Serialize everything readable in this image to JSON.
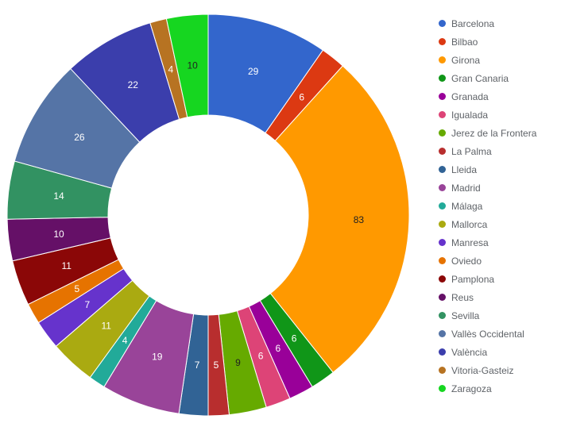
{
  "chart_data": {
    "type": "pie",
    "donut": true,
    "legend_position": "right",
    "slices": [
      {
        "label": "Barcelona",
        "value": 29,
        "color": "#3366cc"
      },
      {
        "label": "Bilbao",
        "value": 6,
        "color": "#dc3912"
      },
      {
        "label": "Girona",
        "value": 83,
        "color": "#ff9900"
      },
      {
        "label": "Gran Canaria",
        "value": 6,
        "color": "#109618"
      },
      {
        "label": "Granada",
        "value": 6,
        "color": "#990099"
      },
      {
        "label": "Igualada",
        "value": 6,
        "color": "#dd4477"
      },
      {
        "label": "Jerez de la Frontera",
        "value": 9,
        "color": "#66aa00"
      },
      {
        "label": "La Palma",
        "value": 5,
        "color": "#b82e2e"
      },
      {
        "label": "Lleida",
        "value": 7,
        "color": "#316395"
      },
      {
        "label": "Madrid",
        "value": 19,
        "color": "#994499"
      },
      {
        "label": "Málaga",
        "value": 4,
        "color": "#22aa99"
      },
      {
        "label": "Mallorca",
        "value": 11,
        "color": "#aaaa11"
      },
      {
        "label": "Manresa",
        "value": 7,
        "color": "#6633cc"
      },
      {
        "label": "Oviedo",
        "value": 5,
        "color": "#e67300"
      },
      {
        "label": "Pamplona",
        "value": 11,
        "color": "#8b0707"
      },
      {
        "label": "Reus",
        "value": 10,
        "color": "#651067"
      },
      {
        "label": "Sevilla",
        "value": 14,
        "color": "#329262"
      },
      {
        "label": "Vallès Occidental",
        "value": 26,
        "color": "#5574a6"
      },
      {
        "label": "València",
        "value": 22,
        "color": "#3b3eac"
      },
      {
        "label": "Vitoria-Gasteiz",
        "value": 4,
        "color": "#b77322"
      },
      {
        "label": "Zaragoza",
        "value": 10,
        "color": "#16d620"
      }
    ]
  }
}
